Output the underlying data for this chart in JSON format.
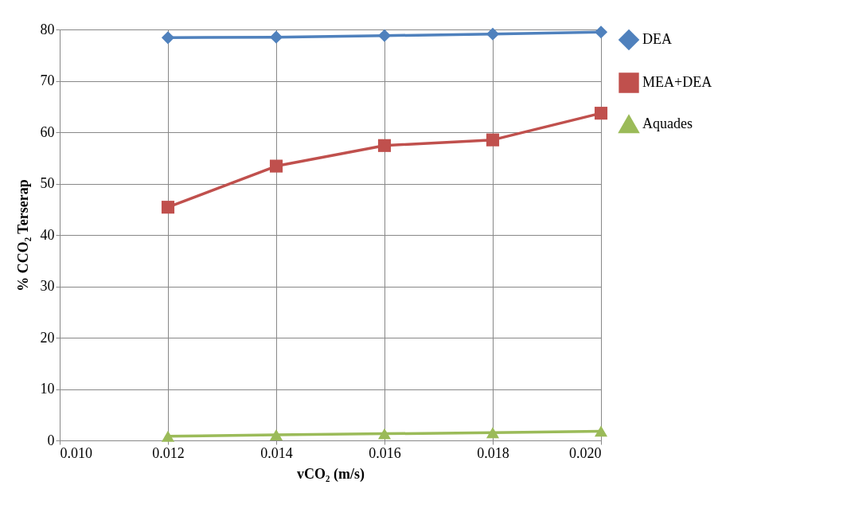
{
  "chart_data": {
    "type": "line",
    "xlabel": "vCO₂ (m/s)",
    "ylabel": "% CCO₂ Terserap",
    "x": [
      0.012,
      0.014,
      0.016,
      0.018,
      0.02
    ],
    "series": [
      {
        "name": "DEA",
        "color": "#4f81bd",
        "marker": "diamond",
        "values": [
          78.4,
          78.5,
          78.8,
          79.1,
          79.5
        ]
      },
      {
        "name": "MEA+DEA",
        "color": "#c0504d",
        "marker": "square",
        "values": [
          45.4,
          53.4,
          57.4,
          58.5,
          63.7
        ]
      },
      {
        "name": "Aquades",
        "color": "#9bbb59",
        "marker": "triangle",
        "values": [
          0.8,
          1.1,
          1.3,
          1.5,
          1.8
        ]
      }
    ],
    "xlim": [
      0.01,
      0.02
    ],
    "xticks": [
      {
        "value": 0.01,
        "label": "0.010"
      },
      {
        "value": 0.012,
        "label": "0.012"
      },
      {
        "value": 0.014,
        "label": "0.014"
      },
      {
        "value": 0.016,
        "label": "0.016"
      },
      {
        "value": 0.018,
        "label": "0.018"
      },
      {
        "value": 0.02,
        "label": "0.020"
      }
    ],
    "ylim": [
      0,
      80
    ],
    "yticks": [
      0,
      10,
      20,
      30,
      40,
      50,
      60,
      70,
      80
    ],
    "grid": true,
    "legend": "right",
    "line_style": "solid"
  }
}
